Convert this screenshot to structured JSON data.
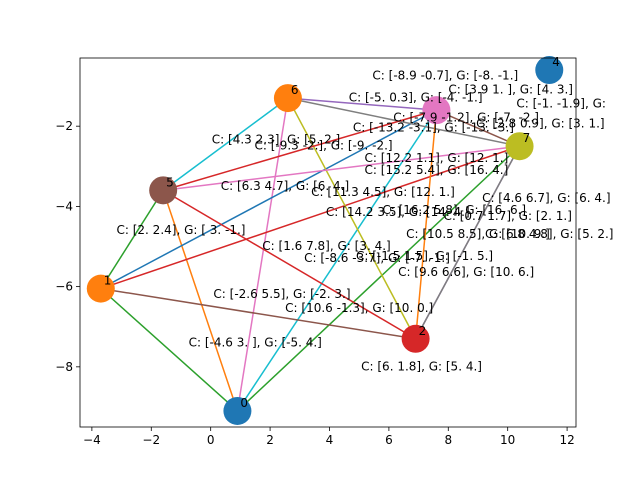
{
  "chart_data": {
    "type": "scatter",
    "xlim": [
      -4.4,
      12.3
    ],
    "ylim": [
      -9.5,
      -0.3
    ],
    "xticks": [
      -4,
      -2,
      0,
      2,
      4,
      6,
      8,
      10,
      12
    ],
    "yticks": [
      -8,
      -6,
      -4,
      -2
    ],
    "grid": false,
    "nodes": [
      {
        "id": "0",
        "x": 0.9,
        "y": -9.1,
        "color": "#1f77b4"
      },
      {
        "id": "1",
        "x": -3.7,
        "y": -6.05,
        "color": "#ff7f0e"
      },
      {
        "id": "2",
        "x": 6.9,
        "y": -7.3,
        "color": "#d62728"
      },
      {
        "id": "4",
        "x": 11.4,
        "y": -0.6,
        "color": "#1f77b4"
      },
      {
        "id": "5",
        "x": -1.6,
        "y": -3.6,
        "color": "#8c564b"
      },
      {
        "id": "6",
        "x": 2.6,
        "y": -1.3,
        "color": "#ff7f0e"
      },
      {
        "id": "7",
        "x": 10.4,
        "y": -2.5,
        "color": "#bcbd22"
      },
      {
        "id": "",
        "x": 7.6,
        "y": -1.6,
        "color": "#e377c2"
      }
    ],
    "edges": [
      {
        "from": 0,
        "to": 1,
        "color": "#2ca02c"
      },
      {
        "from": 0,
        "to": 5,
        "color": "#e377c2"
      },
      {
        "from": 0,
        "to": 6,
        "color": "#2ca02c"
      },
      {
        "from": 0,
        "to": 7,
        "color": "#17becf"
      },
      {
        "from": 0,
        "to": 4,
        "color": "#ff7f0e"
      },
      {
        "from": 1,
        "to": 2,
        "color": "#8c564b"
      },
      {
        "from": 1,
        "to": 6,
        "color": "#d62728"
      },
      {
        "from": 1,
        "to": 7,
        "color": "#1f77b4"
      },
      {
        "from": 1,
        "to": 4,
        "color": "#2ca02c"
      },
      {
        "from": 5,
        "to": 6,
        "color": "#7f7f7f"
      },
      {
        "from": 5,
        "to": 2,
        "color": "#bcbd22"
      },
      {
        "from": 5,
        "to": 7,
        "color": "#9467bd"
      },
      {
        "from": 5,
        "to": 4,
        "color": "#17becf"
      },
      {
        "from": 6,
        "to": 4,
        "color": "#e377c2"
      },
      {
        "from": 6,
        "to": 7,
        "color": "#8c564b"
      },
      {
        "from": 6,
        "to": 2,
        "color": "#9467bd"
      },
      {
        "from": 2,
        "to": 4,
        "color": "#d62728"
      },
      {
        "from": 2,
        "to": 7,
        "color": "#ff7f0e"
      },
      {
        "from": 2,
        "to": 6,
        "color": "#7f7f7f"
      },
      {
        "from": 7,
        "to": 4,
        "color": "#d62728"
      }
    ],
    "edge_labels": [
      {
        "text": "C: [-8.9 -0.7], G: [-8.  -1.]",
        "x": 7.9,
        "y": -0.75
      },
      {
        "text": "C: [3.9 1. ], G: [4. 3.]",
        "x": 10.1,
        "y": -1.1
      },
      {
        "text": "C: [-5.   0.3], G: [-4. -1.]",
        "x": 6.9,
        "y": -1.3
      },
      {
        "text": "C: [-1.  -1.9], G:",
        "x": 11.8,
        "y": -1.45
      },
      {
        "text": "C: [-7.9 -1.2], G: [-7.  -2.]",
        "x": 8.6,
        "y": -1.8
      },
      {
        "text": "C: [-13.2 -3.1], G: [-13. -3.]",
        "x": 7.5,
        "y": -2.05
      },
      {
        "text": "C: [2.8 0.9], G: [3. 1.]",
        "x": 11.1,
        "y": -1.95
      },
      {
        "text": "C: [4.3 2.3], G: [5.   2.]",
        "x": 2.2,
        "y": -2.35
      },
      {
        "text": "C: [-9.3 -2.], G: [-9. -2.]",
        "x": 3.8,
        "y": -2.5
      },
      {
        "text": "C: [12.2  1.1], G: [12.  1.]",
        "x": 7.6,
        "y": -2.8
      },
      {
        "text": "C: [15.2  5.4], G: [16.  4.]",
        "x": 7.6,
        "y": -3.1
      },
      {
        "text": "C: [6.3 4.7], G: [6. 4.]",
        "x": 2.5,
        "y": -3.5
      },
      {
        "text": "C: [11.3  4.5], G: [12.  1.]",
        "x": 5.8,
        "y": -3.65
      },
      {
        "text": "C: [4.6 6.7], G: [6. 4.]",
        "x": 11.3,
        "y": -3.8
      },
      {
        "text": "C: [14.2  3.5], G: [14.  4.]",
        "x": 6.3,
        "y": -4.15
      },
      {
        "text": "C: [16.2  5.8], G: [16.  6.]",
        "x": 8.2,
        "y": -4.1
      },
      {
        "text": "C: [0.7 1.7], G: [2. 1.]",
        "x": 10.0,
        "y": -4.25
      },
      {
        "text": "C: [2.  2.4], G: [ 3. -1.]",
        "x": -1.0,
        "y": -4.6
      },
      {
        "text": "C: [10.5  8.5], G: [10.  9.]",
        "x": 9.0,
        "y": -4.7
      },
      {
        "text": "C: [6.8 4.8], G: [5. 2.]",
        "x": 11.4,
        "y": -4.7
      },
      {
        "text": "C: [1.6 7.8], G: [3. 4.]",
        "x": 3.9,
        "y": -5.0
      },
      {
        "text": "C: [-1.5 1.5], G: [-1. 5.]",
        "x": 7.2,
        "y": -5.25
      },
      {
        "text": "C: [-8.6 -3.7], G: [-7. -1.]",
        "x": 5.6,
        "y": -5.3
      },
      {
        "text": "C: [9.6 6.6], G: [10.  6.]",
        "x": 8.6,
        "y": -5.65
      },
      {
        "text": "C: [-2.6  5.5], G: [-2.  3.]",
        "x": 2.4,
        "y": -6.2
      },
      {
        "text": "C: [10.6 -1.3], G: [10.  0.]",
        "x": 5.0,
        "y": -6.55
      },
      {
        "text": "C: [-4.6  3. ], G: [-5.   4.]",
        "x": 1.5,
        "y": -7.4
      },
      {
        "text": "C: [6.  1.8], G: [5. 4.]",
        "x": 7.1,
        "y": -8.0
      }
    ]
  }
}
